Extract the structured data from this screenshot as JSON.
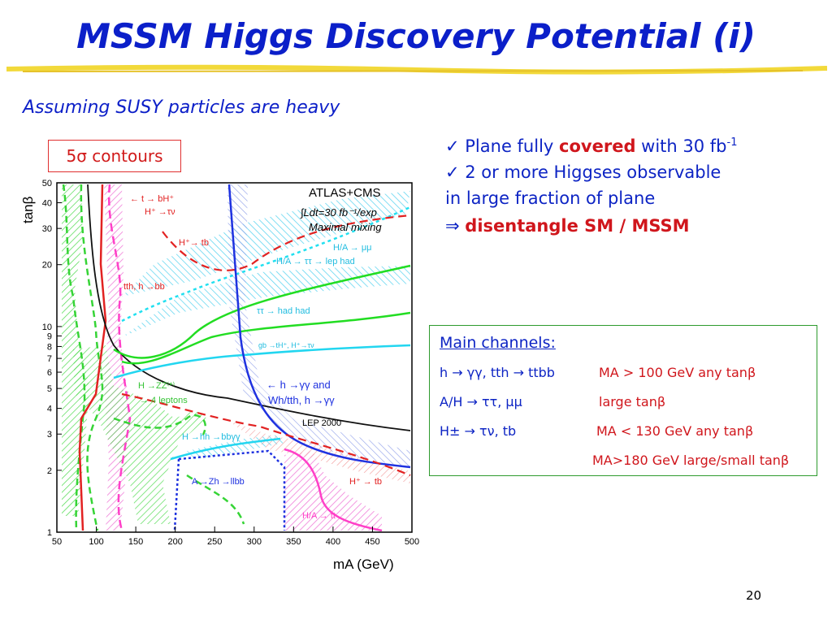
{
  "slide": {
    "title": "MSSM Higgs Discovery Potential (i)",
    "subtitle": "Assuming SUSY particles are heavy",
    "contour_box": "5σ contours",
    "page_number": "20"
  },
  "bullets": {
    "b1_pre": "✓ Plane fully ",
    "b1_red": "covered",
    "b1_post": " with 30 fb",
    "b1_sup": "-1",
    "b2_line1": "✓ 2 or more Higgses observable",
    "b2_line2": "in large fraction of plane",
    "b3_arrow": "⇒ ",
    "b3_red": "disentangle SM / MSSM"
  },
  "main_channels": {
    "header": "Main channels:",
    "rows": [
      {
        "channel": "h → γγ, tth → ttbb",
        "condition": "MA > 100 GeV any tanβ"
      },
      {
        "channel": "A/H → ττ, μμ",
        "condition": "large tanβ"
      },
      {
        "channel": "H± → τν, tb",
        "condition": "MA < 130 GeV any tanβ"
      },
      {
        "channel": "",
        "condition": "MA>180 GeV large/small tanβ"
      }
    ]
  },
  "plot": {
    "legend_title": "ATLAS+CMS",
    "legend_lumi": "∫Ldt=30 fb⁻¹/exp",
    "legend_mixing": "Maximal mixing",
    "xlabel": "mA (GeV)",
    "ylabel": "tanβ",
    "x_ticks": [
      "50",
      "100",
      "150",
      "200",
      "250",
      "300",
      "350",
      "400",
      "450",
      "500"
    ],
    "y_ticks": [
      "1",
      "2",
      "3",
      "4",
      "5",
      "6",
      "7",
      "8",
      "9",
      "10",
      "20",
      "30",
      "40",
      "50"
    ],
    "labels": {
      "t_bH": "← t → bH⁺",
      "H_taunu": "H⁺ →τν",
      "H_tb_top": "H⁺→ tb",
      "HA_mumu": "H/A → μμ",
      "HA_tautau": "H/A → ττ → lep had",
      "tautau_hadhad": "ττ → had had",
      "tth_hbb": "tth, h →bb",
      "gb": "gb →tH⁺, H⁺→τν",
      "h_gg": "← h →γγ and",
      "wh_tth": "Wh/tth, h →γγ",
      "H_ZZ": "H →ZZ⁽*⁾",
      "four_leptons": "→ 4 leptons",
      "lep2000": "LEP 2000",
      "H_hh": "H →hh →bbγγ",
      "A_Zh": "A →Zh →llbb",
      "H_tb_bottom": "H⁺ → tb",
      "HA_tt": "H/A → tt"
    }
  }
}
